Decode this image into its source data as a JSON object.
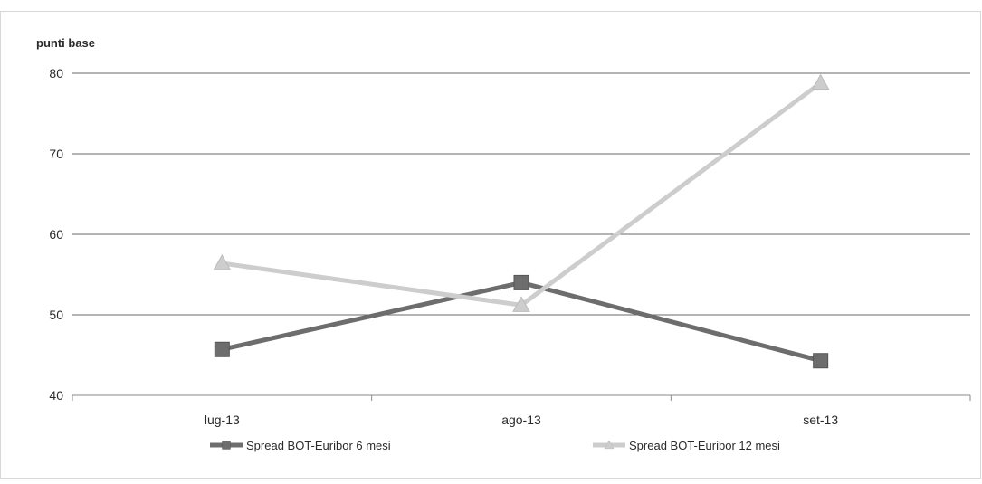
{
  "chart_data": {
    "type": "line",
    "title": "",
    "ylabel": "punti base",
    "xlabel": "",
    "categories": [
      "lug-13",
      "ago-13",
      "set-13"
    ],
    "ylim": [
      40,
      80
    ],
    "yticks": [
      40,
      50,
      60,
      70,
      80
    ],
    "grid": true,
    "legend_position": "bottom",
    "series": [
      {
        "name": "Spread BOT-Euribor 6 mesi",
        "values": [
          45.7,
          54.0,
          44.3
        ],
        "color": "#6d6d6d",
        "marker": "square"
      },
      {
        "name": "Spread BOT-Euribor 12 mesi",
        "values": [
          56.4,
          51.2,
          78.8
        ],
        "color": "#cdcdcd",
        "marker": "triangle"
      }
    ]
  }
}
